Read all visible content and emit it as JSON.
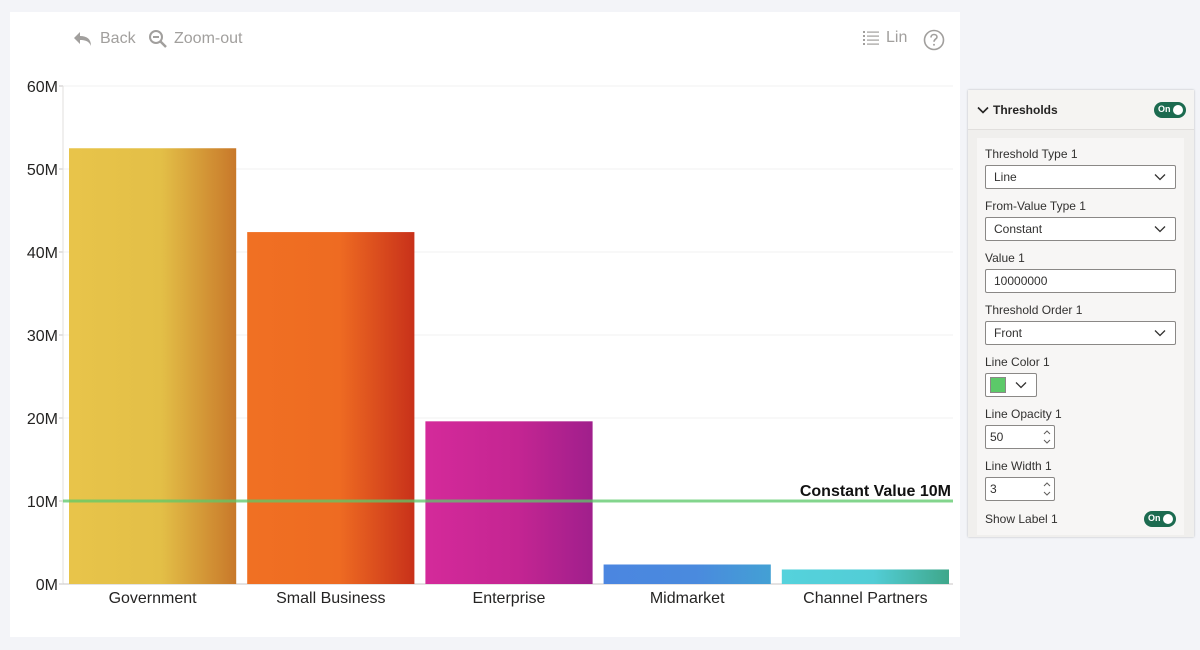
{
  "toolbar": {
    "back_label": "Back",
    "zoom_label": "Zoom-out",
    "lin_label": "Lin"
  },
  "chart_data": {
    "type": "bar",
    "categories": [
      "Government",
      "Small Business",
      "Enterprise",
      "Midmarket",
      "Channel Partners"
    ],
    "values": [
      52500000,
      42400000,
      19600000,
      2350000,
      1750000
    ],
    "ylim": [
      0,
      60000000
    ],
    "yticks": [
      "0M",
      "10M",
      "20M",
      "30M",
      "40M",
      "50M",
      "60M"
    ],
    "ytick_values": [
      0,
      10000000,
      20000000,
      30000000,
      40000000,
      50000000,
      60000000
    ],
    "grid": true,
    "bar_gradients": [
      [
        "#e8c44a",
        "#e3bf47",
        "#c8782a"
      ],
      [
        "#f07023",
        "#ee6b22",
        "#c8311a"
      ],
      [
        "#d42a9a",
        "#c42592",
        "#a01f8c"
      ],
      [
        "#4b86e0",
        "#4a8ade",
        "#43a0d4"
      ],
      [
        "#55d2dc",
        "#52cdd6",
        "#3fa78a"
      ]
    ],
    "threshold": {
      "value": 10000000,
      "label": "Constant Value 10M",
      "color": "#5cc969",
      "opacity": 0.5
    }
  },
  "pane": {
    "section_title": "Thresholds",
    "section_toggle": "On",
    "fields": {
      "threshold_type_label": "Threshold Type 1",
      "threshold_type_value": "Line",
      "from_value_type_label": "From-Value Type 1",
      "from_value_type_value": "Constant",
      "value_label": "Value 1",
      "value_value": "10000000",
      "order_label": "Threshold Order 1",
      "order_value": "Front",
      "line_color_label": "Line Color 1",
      "line_color_value": "#5cc969",
      "line_opacity_label": "Line Opacity 1",
      "line_opacity_value": "50",
      "line_width_label": "Line Width 1",
      "line_width_value": "3",
      "show_label_label": "Show Label 1",
      "show_label_toggle": "On"
    }
  }
}
